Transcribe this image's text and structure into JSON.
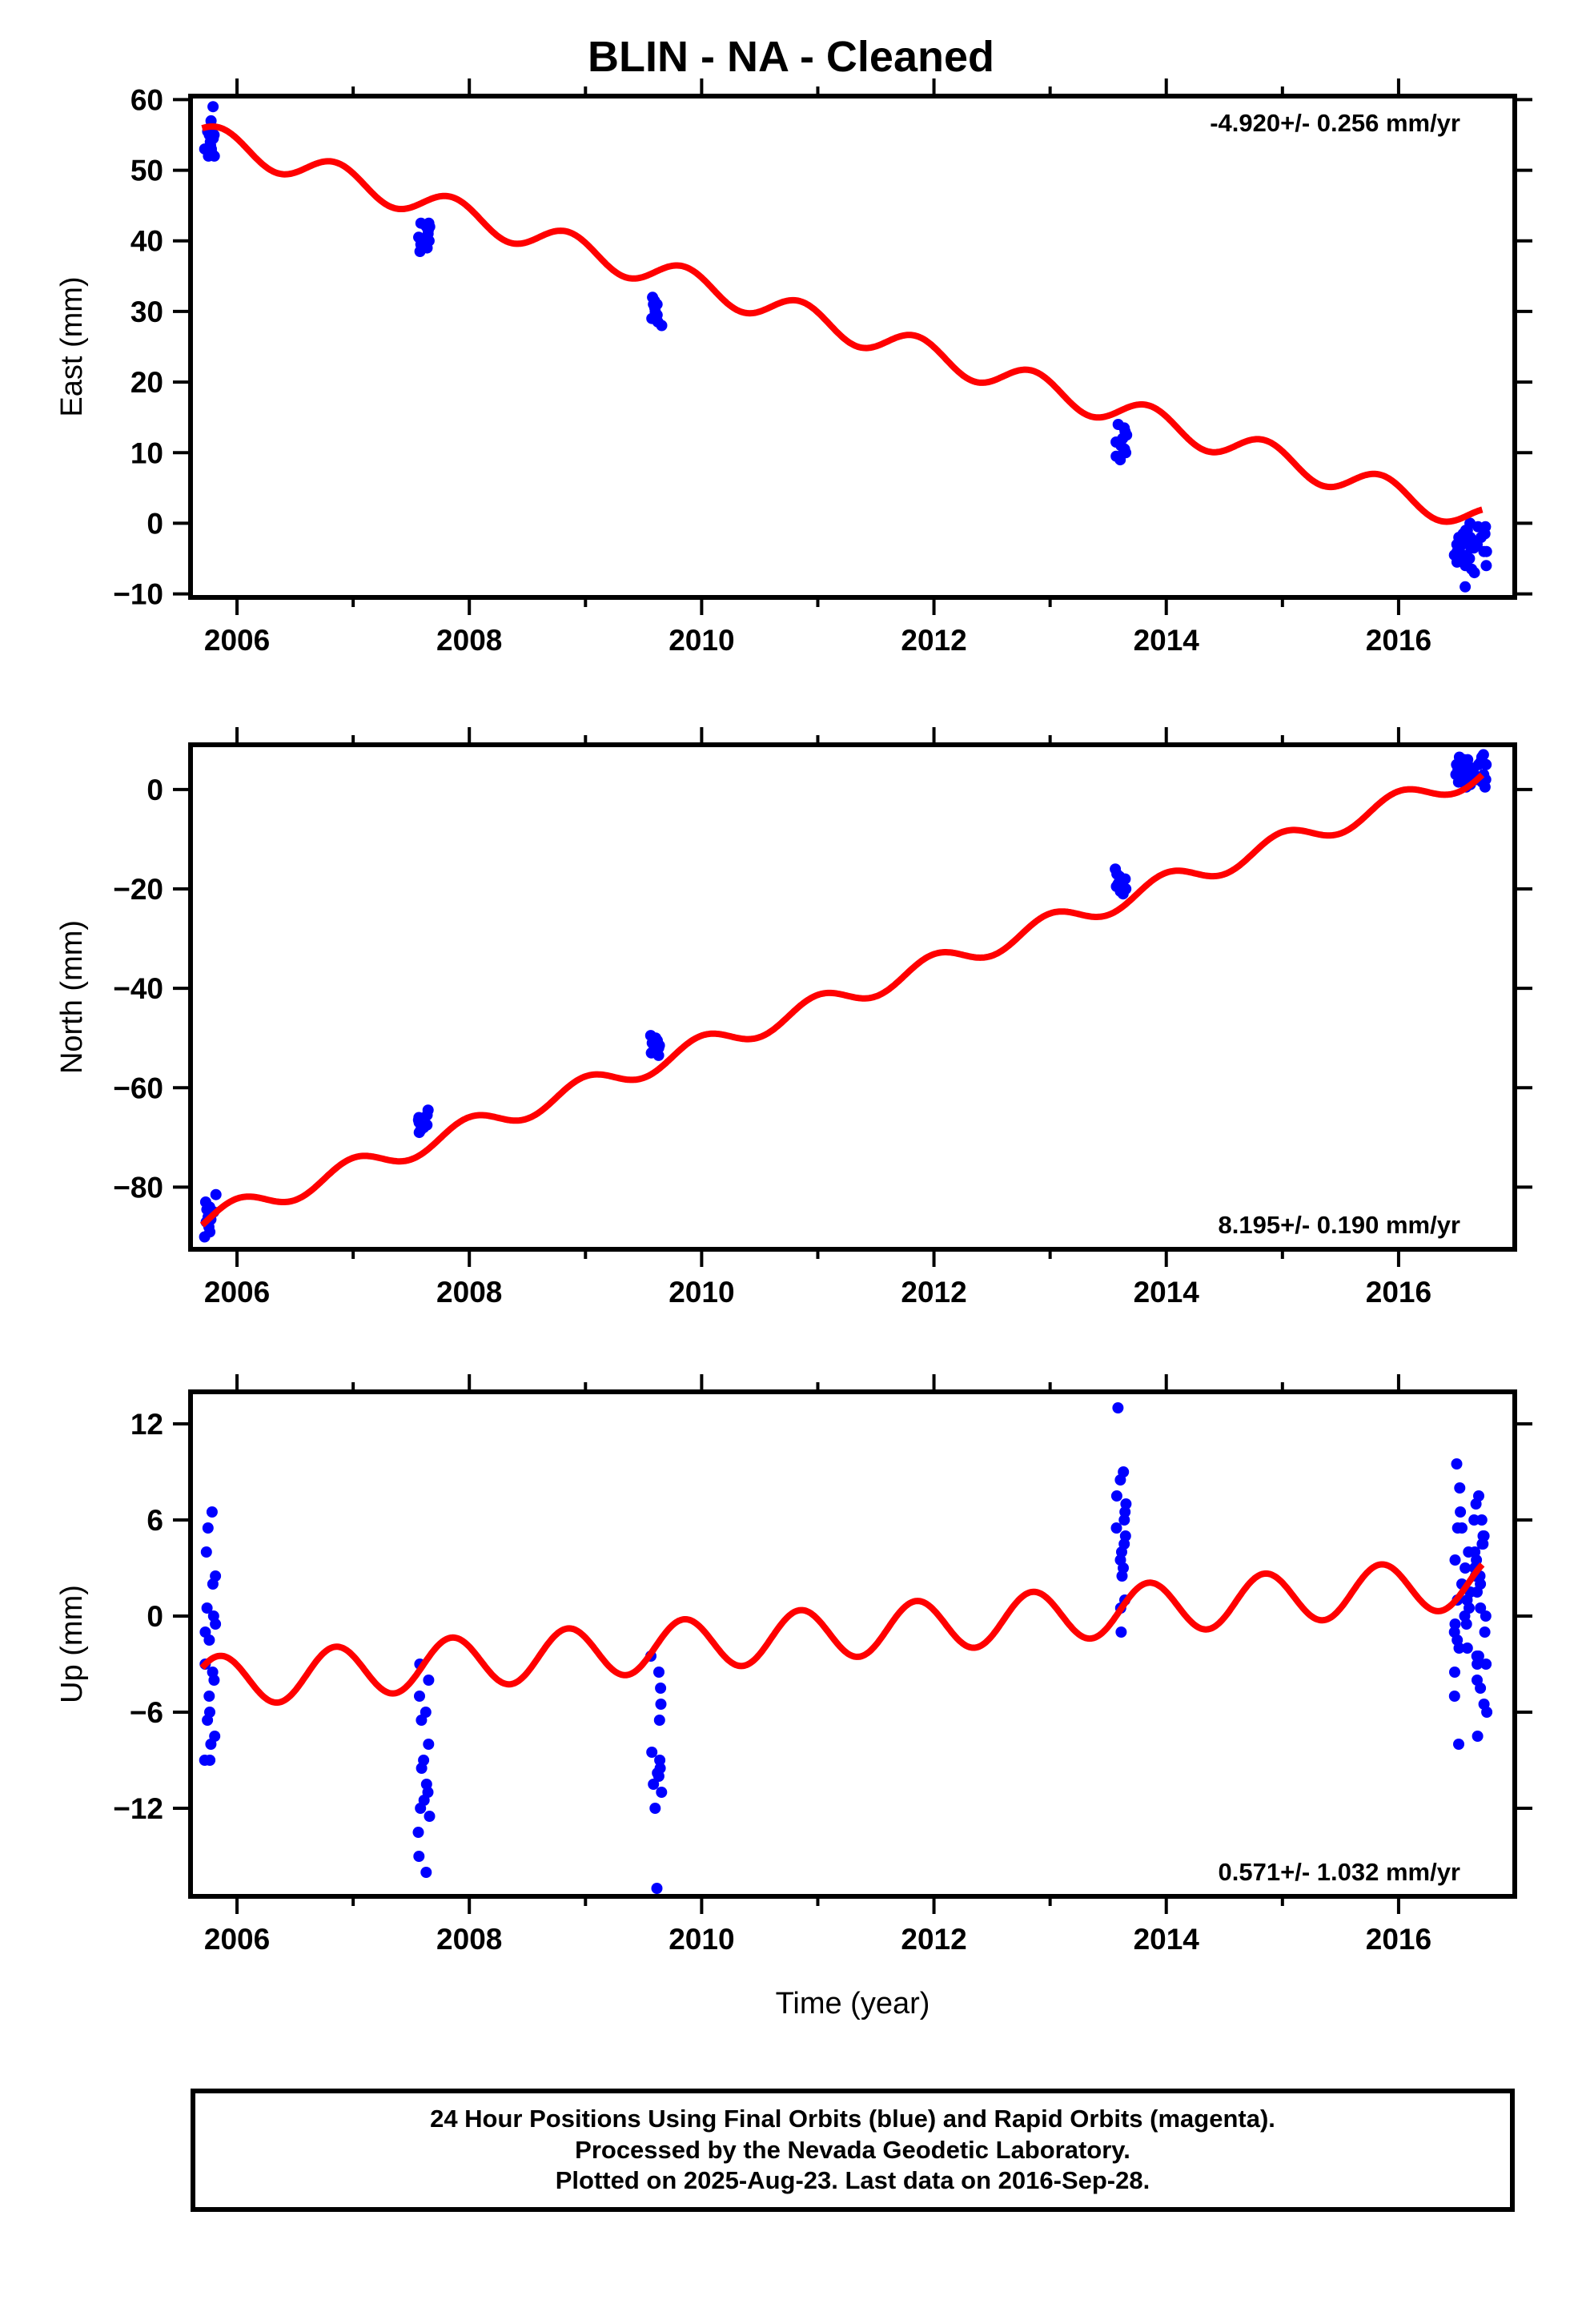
{
  "title": "BLIN  - NA - Cleaned",
  "footer": {
    "line1": "24 Hour Positions Using Final Orbits (blue) and Rapid Orbits (magenta).",
    "line2": "Processed by the Nevada Geodetic Laboratory.",
    "line3": "Plotted on 2025-Aug-23. Last data on 2016-Sep-28."
  },
  "colors": {
    "data_points": "#0000ff",
    "model_line": "#ff0000",
    "frame": "#000000"
  },
  "chart_data": [
    {
      "type": "scatter",
      "title": "BLIN  - NA - Cleaned",
      "ylabel": "East (mm)",
      "xlabel": "",
      "rate_label": "-4.920+/- 0.256 mm/yr",
      "rate_position": "top-right",
      "xlim": [
        2005.6,
        2017.0
      ],
      "ylim": [
        -10.5,
        60.5
      ],
      "xticks": [
        "2006",
        "2008",
        "2010",
        "2012",
        "2014",
        "2016"
      ],
      "yticks": [
        "60",
        "50",
        "40",
        "30",
        "20",
        "10",
        "0",
        "−10"
      ],
      "ytick_values": [
        60,
        50,
        40,
        30,
        20,
        10,
        0,
        -10
      ],
      "grid": false,
      "model": {
        "name": "model fit",
        "slope": -4.92,
        "value_at_2006": 53.3,
        "annual_amplitude": 2.0,
        "annual_peak": 2005.85
      },
      "clusters": [
        {
          "x_range": [
            2005.72,
            2005.82
          ],
          "y": [
            59.0,
            57.0,
            56.0,
            55.5,
            55.0,
            54.5,
            54.0,
            54.0,
            53.5,
            53.0,
            53.0,
            52.5,
            52.5,
            52.0,
            52.0,
            55.0
          ]
        },
        {
          "x_range": [
            2007.56,
            2007.66
          ],
          "y": [
            42.5,
            42.0,
            42.0,
            41.5,
            41.0,
            40.5,
            40.0,
            40.0,
            39.5,
            39.0,
            38.5,
            42.5
          ]
        },
        {
          "x_range": [
            2009.56,
            2009.66
          ],
          "y": [
            32.0,
            31.5,
            31.0,
            30.5,
            30.0,
            29.5,
            29.0,
            28.5,
            28.0,
            31.0
          ]
        },
        {
          "x_range": [
            2013.56,
            2013.66
          ],
          "y": [
            14.0,
            13.5,
            13.0,
            12.0,
            11.5,
            11.0,
            10.5,
            10.0,
            9.5,
            9.0,
            12.5,
            10.0
          ]
        },
        {
          "x_range": [
            2016.48,
            2016.76
          ],
          "y": [
            0.0,
            -1.0,
            -2.0,
            -3.0,
            -4.0,
            -5.0,
            -6.0,
            -7.0,
            -2.5,
            -3.5,
            -4.5,
            -1.5,
            -0.5,
            -2.0,
            -3.0,
            -5.5,
            -4.0,
            -6.5,
            -1.0,
            -3.5,
            -2.5,
            -5.0,
            -4.5,
            -0.5,
            -9.0,
            -3.0,
            -2.0,
            -6.0,
            -1.5,
            -4.0
          ]
        }
      ]
    },
    {
      "type": "scatter",
      "ylabel": "North (mm)",
      "xlabel": "",
      "rate_label": "8.195+/- 0.190 mm/yr",
      "rate_position": "bottom-right",
      "xlim": [
        2005.6,
        2017.0
      ],
      "ylim": [
        -92.5,
        9.0
      ],
      "xticks": [
        "2006",
        "2008",
        "2010",
        "2012",
        "2014",
        "2016"
      ],
      "yticks": [
        "0",
        "−20",
        "−40",
        "−60",
        "−80"
      ],
      "ytick_values": [
        0,
        -20,
        -40,
        -60,
        -80
      ],
      "grid": false,
      "model": {
        "name": "model fit",
        "slope": 8.195,
        "value_at_2006": -84.5,
        "annual_amplitude": 2.2,
        "annual_peak": 2006.0
      },
      "clusters": [
        {
          "x_range": [
            2005.72,
            2005.82
          ],
          "y": [
            -81.5,
            -83.0,
            -84.0,
            -85.0,
            -85.5,
            -86.0,
            -87.0,
            -88.0,
            -89.0,
            -90.0,
            -84.5,
            -86.5
          ]
        },
        {
          "x_range": [
            2007.56,
            2007.66
          ],
          "y": [
            -64.5,
            -65.5,
            -66.5,
            -67.0,
            -67.5,
            -68.0,
            -68.5,
            -69.0,
            -66.0
          ]
        },
        {
          "x_range": [
            2009.56,
            2009.66
          ],
          "y": [
            -49.5,
            -50.5,
            -51.0,
            -51.5,
            -52.0,
            -52.5,
            -53.0,
            -53.5,
            -50.0
          ]
        },
        {
          "x_range": [
            2013.56,
            2013.66
          ],
          "y": [
            -16.0,
            -17.0,
            -17.5,
            -18.0,
            -18.5,
            -19.0,
            -19.5,
            -20.0,
            -20.5,
            -21.0
          ]
        },
        {
          "x_range": [
            2016.48,
            2016.76
          ],
          "y": [
            7.0,
            6.5,
            6.0,
            5.5,
            5.0,
            4.5,
            4.0,
            3.5,
            3.0,
            2.5,
            2.0,
            1.5,
            1.0,
            0.5,
            6.0,
            5.0,
            4.0,
            3.0,
            2.0,
            4.5,
            5.5,
            3.5,
            2.5,
            6.5,
            1.5,
            4.0,
            3.0,
            5.0,
            0.5,
            2.0
          ]
        }
      ]
    },
    {
      "type": "scatter",
      "ylabel": "Up (mm)",
      "xlabel": "Time (year)",
      "rate_label": "0.571+/- 1.032 mm/yr",
      "rate_position": "bottom-right",
      "xlim": [
        2005.6,
        2017.0
      ],
      "ylim": [
        -17.5,
        14.0
      ],
      "xticks": [
        "2006",
        "2008",
        "2010",
        "2012",
        "2014",
        "2016"
      ],
      "yticks": [
        "12",
        "6",
        "0",
        "−6",
        "−12"
      ],
      "ytick_values": [
        12,
        6,
        0,
        -6,
        -12
      ],
      "grid": false,
      "model": {
        "name": "model fit",
        "slope": 0.571,
        "value_at_2006": -4.0,
        "annual_amplitude": 1.6,
        "annual_peak": 2005.85
      },
      "clusters": [
        {
          "x_range": [
            2005.72,
            2005.82
          ],
          "y": [
            6.5,
            5.5,
            4.0,
            2.5,
            2.0,
            0.5,
            0.0,
            -0.5,
            -1.0,
            -1.5,
            -3.0,
            -4.0,
            -5.0,
            -6.0,
            -6.5,
            -7.5,
            -8.0,
            -9.0,
            -9.0,
            -3.5
          ]
        },
        {
          "x_range": [
            2007.56,
            2007.66
          ],
          "y": [
            -3.0,
            -4.0,
            -5.0,
            -6.0,
            -6.5,
            -8.0,
            -9.0,
            -9.5,
            -10.5,
            -11.0,
            -12.0,
            -12.5,
            -13.5,
            -15.0,
            -16.0,
            -11.5
          ]
        },
        {
          "x_range": [
            2009.56,
            2009.66
          ],
          "y": [
            -2.5,
            -3.5,
            -4.5,
            -5.5,
            -6.5,
            -8.5,
            -9.0,
            -9.5,
            -10.0,
            -10.5,
            -11.0,
            -12.0,
            -17.0,
            -9.8
          ]
        },
        {
          "x_range": [
            2013.56,
            2013.66
          ],
          "y": [
            13.0,
            9.0,
            8.5,
            7.5,
            7.0,
            6.5,
            6.0,
            5.5,
            5.0,
            4.5,
            4.0,
            3.5,
            3.0,
            2.5,
            1.0,
            0.5,
            -1.0
          ]
        },
        {
          "x_range": [
            2016.48,
            2016.76
          ],
          "y": [
            9.5,
            8.0,
            7.0,
            6.5,
            6.0,
            5.5,
            5.0,
            4.5,
            4.0,
            3.5,
            3.0,
            2.5,
            2.0,
            1.5,
            1.0,
            0.5,
            0.0,
            -0.5,
            -1.0,
            -1.5,
            -2.0,
            -2.5,
            -3.0,
            -3.5,
            -4.0,
            -5.0,
            -5.5,
            -6.0,
            -7.5,
            -8.0,
            6.0,
            5.0,
            4.0,
            3.0,
            2.0,
            1.0,
            0.0,
            -1.0,
            -2.0,
            -3.0,
            7.5,
            5.5,
            3.5,
            1.5,
            -0.5,
            -2.5,
            -4.5,
            4.5,
            2.5,
            0.5
          ]
        }
      ]
    }
  ]
}
